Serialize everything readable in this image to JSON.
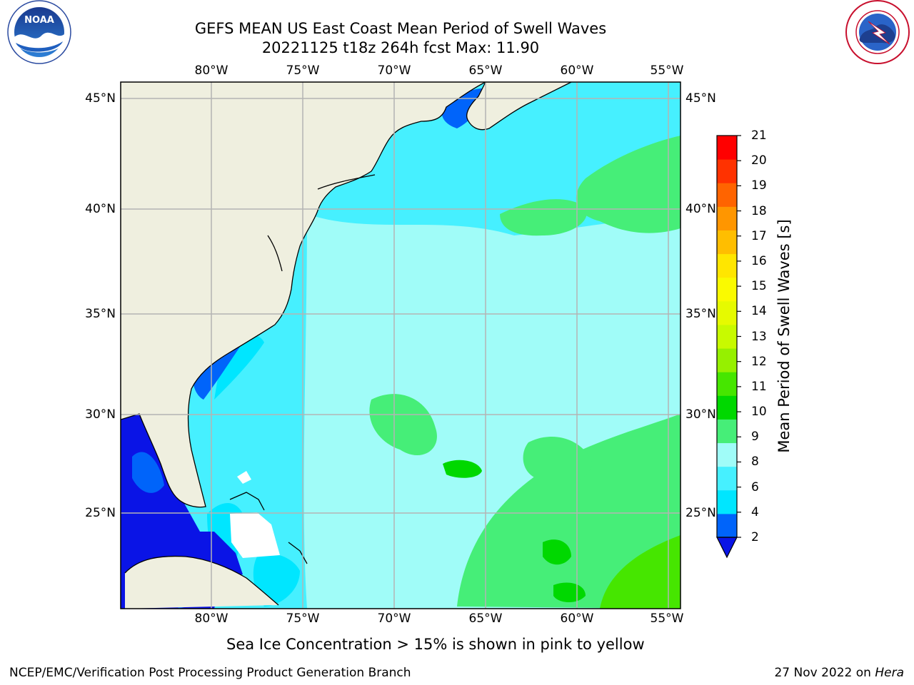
{
  "header": {
    "title_line1": "GEFS MEAN US East Coast Mean Period of Swell Waves",
    "title_line2": "20221125 t18z 264h fcst   Max: 11.90"
  },
  "logos": {
    "noaa_text": "NOAA",
    "noaa_ring_text": "NATIONAL OCEANIC AND ATMOSPHERIC ADMINISTRATION · U.S. DEPARTMENT OF COMMERCE",
    "nws_ring_text": "NATIONAL WEATHER SERVICE"
  },
  "map": {
    "lon_labels": [
      "80°W",
      "75°W",
      "70°W",
      "65°W",
      "60°W",
      "55°W"
    ],
    "lat_labels": [
      "45°N",
      "40°N",
      "35°N",
      "30°N",
      "25°N"
    ],
    "colors": {
      "land": "#efefdf",
      "grid": "#b4b4b4",
      "coast": "#000000",
      "sea_ice_mask": "#ffffff"
    }
  },
  "colorbar": {
    "label": "Mean Period of Swell Waves [s]",
    "ticks": [
      "2",
      "4",
      "6",
      "8",
      "9",
      "10",
      "11",
      "12",
      "13",
      "14",
      "15",
      "16",
      "17",
      "18",
      "19",
      "20",
      "21"
    ],
    "colors": [
      "#0064fa",
      "#00e6ff",
      "#46f0ff",
      "#a0fcf8",
      "#46ee78",
      "#00d800",
      "#46e600",
      "#96f000",
      "#c8fa00",
      "#e6fa00",
      "#fafa00",
      "#ffe600",
      "#ffbe00",
      "#ff9600",
      "#ff6400",
      "#ff3200",
      "#ff0000"
    ],
    "underflow_color": "#0a14e6"
  },
  "footnote": "Sea Ice Concentration > 15% is shown in pink to yellow",
  "footer": {
    "left": "NCEP/EMC/Verification Post Processing Product Generation Branch",
    "right_date": "27 Nov 2022 on",
    "right_host": "Hera"
  }
}
